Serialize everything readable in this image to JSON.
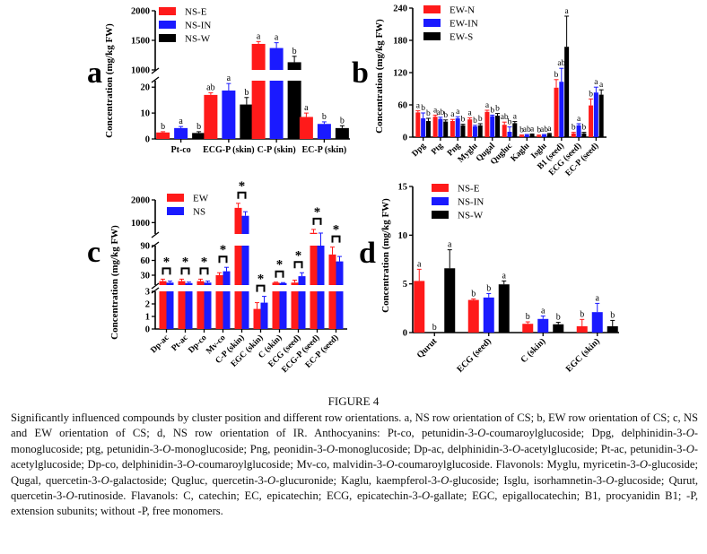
{
  "figure": {
    "title": "FIGURE 4",
    "caption_html": "Significantly influenced compounds by cluster position and different row orientations. a, NS row orientation of CS; b, EW row orientation of CS; c, NS and EW orientation of CS; d, NS row orientation of IR. Anthocyanins: Pt-co, petunidin-3-<i>O</i>-coumaroylglucoside; Dpg, delphinidin-3-<i>O</i>-monoglucoside; ptg, petunidin-3-<i>O</i>-monoglucoside; Png, peonidin-3-<i>O</i>-monoglucoside; Dp-ac, delphinidin-3-<i>O</i>-acetylglucoside; Pt-ac, petunidin-3-<i>O</i>-acetylglucoside; Dp-co, delphinidin-3-<i>O</i>-coumaroylglucoside; Mv-co, malvidin-3-<i>O</i>-coumaroylglucoside. Flavonols: Myglu, myricetin-3-<i>O</i>-glucoside; Qugal, quercetin-3-<i>O</i>-galactoside; Qugluc, quercetin-3-<i>O</i>-glucuronide; Kaglu, kaempferol-3-<i>O</i>-glucoside; Isglu, isorhamnetin-3-<i>O</i>-glucoside; Qurut, quercetin-3-<i>O</i>-rutinoside. Flavanols: C, catechin; EC, epicatechin; ECG, epicatechin-3-<i>O</i>-gallate; EGC, epigallocatechin; B1, procyanidin B1; -P, extension subunits; without -P, free monomers."
  },
  "colors": {
    "red": "#ff1a1a",
    "blue": "#1a1aff",
    "black": "#000000"
  },
  "chart_data": [
    {
      "panel": "a",
      "type": "bar",
      "ylabel": "Concentration (mg/kg FW)",
      "axis_break": true,
      "yticks_lower": [
        0,
        10,
        20
      ],
      "yticks_upper": [
        1000,
        1500,
        2000
      ],
      "categories": [
        "Pt-co",
        "ECG-P (skin)",
        "C-P (skin)",
        "EC-P (skin)"
      ],
      "series": [
        {
          "name": "NS-E",
          "color": "red",
          "values": [
            2.5,
            17,
            1440,
            8.5
          ],
          "errors": [
            0.3,
            0.8,
            40,
            1.5
          ],
          "letters": [
            "b",
            "ab",
            "a",
            "a"
          ]
        },
        {
          "name": "NS-IN",
          "color": "blue",
          "values": [
            4.2,
            18.7,
            1370,
            5.8
          ],
          "errors": [
            0.6,
            2.7,
            90,
            0.8
          ],
          "letters": [
            "a",
            "a",
            "a",
            "b"
          ]
        },
        {
          "name": "NS-W",
          "color": "black",
          "values": [
            2.3,
            13.3,
            1130,
            4.2
          ],
          "errors": [
            0.5,
            2.7,
            100,
            0.9
          ],
          "letters": [
            "b",
            "b",
            "b",
            "b"
          ]
        }
      ],
      "legend": "top-left"
    },
    {
      "panel": "b",
      "type": "bar",
      "ylabel": "Concentration (mg/kg FW)",
      "ylim": [
        0,
        240
      ],
      "yticks": [
        0,
        60,
        120,
        180,
        240
      ],
      "categories": [
        "Dpg",
        "Ptg",
        "Png",
        "Myglu",
        "Qugal",
        "Qugluc",
        "Kaglu",
        "Isglu",
        "B1 (seed)",
        "ECG (seed)",
        "EC-P (seed)"
      ],
      "series": [
        {
          "name": "EW-N",
          "color": "red",
          "values": [
            46,
            38,
            30,
            33,
            47,
            23,
            3,
            3,
            92,
            7,
            59
          ],
          "errors": [
            3,
            3,
            3,
            3,
            3,
            5,
            1,
            1,
            15,
            2,
            12
          ],
          "letters": [
            "a",
            "a",
            "a",
            "a",
            "a",
            "ab",
            "b",
            "b",
            "b",
            "b",
            "b"
          ]
        },
        {
          "name": "EW-IN",
          "color": "blue",
          "values": [
            35,
            34,
            35,
            20,
            39,
            10,
            4,
            4,
            103,
            22,
            83
          ],
          "errors": [
            10,
            3,
            3,
            2,
            2,
            9,
            1,
            1,
            25,
            3,
            10
          ],
          "letters": [
            "b",
            "ab",
            "a",
            "b",
            "b",
            "b",
            "ab",
            "ab",
            "ab",
            "a",
            "a"
          ]
        },
        {
          "name": "EW-S",
          "color": "black",
          "values": [
            30,
            29,
            22,
            22,
            40,
            26,
            5,
            6,
            168,
            7,
            79
          ],
          "errors": [
            5,
            3,
            2,
            3,
            4,
            3,
            1,
            1,
            57,
            2,
            9
          ],
          "letters": [
            "b",
            "b",
            "b",
            "b",
            "b",
            "a",
            "a",
            "a",
            "a",
            "b",
            "a"
          ]
        }
      ],
      "legend": "top-left"
    },
    {
      "panel": "c",
      "type": "bar",
      "ylabel": "Concentration (mg/kg FW)",
      "axis_break": true,
      "yticks_lower": [
        0,
        1,
        2,
        3
      ],
      "yticks_middle": [
        30,
        60,
        90
      ],
      "yticks_upper": [
        1000,
        2000
      ],
      "categories": [
        "Dp-ac",
        "Pt-ac",
        "Dp-co",
        "Mv-co",
        "C-P (skin)",
        "EGC (skin)",
        "C (skin)",
        "ECG (seed)",
        "ECG-P (seed)",
        "EC-P (seed)"
      ],
      "significance": [
        "*",
        "*",
        "*",
        "*",
        "*",
        "*",
        "*",
        "*",
        "*",
        "*"
      ],
      "series": [
        {
          "name": "EW",
          "color": "red",
          "values": [
            18,
            18,
            18,
            30,
            1650,
            1.6,
            15,
            15,
            550,
            72
          ],
          "errors": [
            4,
            4,
            4,
            5,
            200,
            0.5,
            1,
            5,
            150,
            15
          ]
        },
        {
          "name": "NS",
          "color": "blue",
          "values": [
            15,
            14,
            15,
            38,
            1300,
            2.1,
            14,
            28,
            420,
            58
          ],
          "errors": [
            3,
            2,
            3,
            8,
            180,
            0.5,
            1,
            7,
            120,
            10
          ]
        }
      ],
      "legend": "top-left"
    },
    {
      "panel": "d",
      "type": "bar",
      "ylabel": "Concentration (mg/kg FW)",
      "ylim": [
        0,
        15
      ],
      "yticks": [
        0,
        5,
        10,
        15
      ],
      "categories": [
        "Qurut",
        "ECG (seed)",
        "C (skin)",
        "EGC (skin)"
      ],
      "series": [
        {
          "name": "NS-E",
          "color": "red",
          "values": [
            5.3,
            3.35,
            0.9,
            0.65
          ],
          "errors": [
            1.2,
            0.1,
            0.2,
            0.7
          ],
          "letters": [
            "a",
            "b",
            "b",
            "b"
          ]
        },
        {
          "name": "NS-IN",
          "color": "blue",
          "values": [
            0,
            3.6,
            1.4,
            2.1
          ],
          "errors": [
            0,
            0.4,
            0.3,
            0.9
          ],
          "letters": [
            "b",
            "b",
            "a",
            "a"
          ]
        },
        {
          "name": "NS-W",
          "color": "black",
          "values": [
            6.6,
            4.95,
            0.85,
            0.65
          ],
          "errors": [
            1.9,
            0.35,
            0.2,
            0.6
          ],
          "letters": [
            "a",
            "a",
            "b",
            "b"
          ]
        }
      ],
      "legend": "top-left"
    }
  ]
}
